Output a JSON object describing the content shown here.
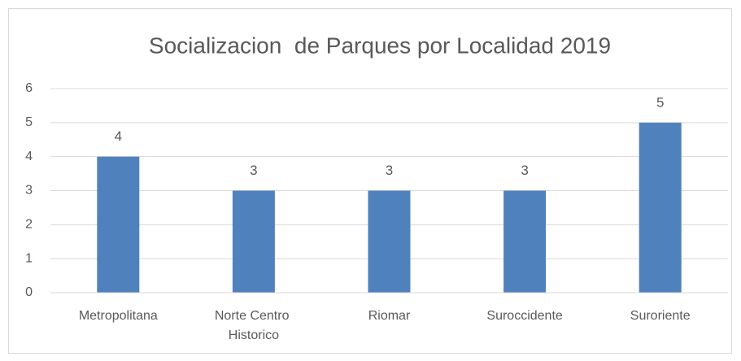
{
  "chart_data": {
    "type": "bar",
    "title": "Socializacion  de Parques por Localidad 2019",
    "categories": [
      "Metropolitana",
      "Norte Centro Historico",
      "Riomar",
      "Suroccidente",
      "Suroriente"
    ],
    "values": [
      4,
      3,
      3,
      3,
      5
    ],
    "color": "#4f81bd",
    "ylim": [
      0,
      6
    ],
    "yticks": [
      0,
      1,
      2,
      3,
      4,
      5,
      6
    ],
    "grid": true,
    "data_labels": true
  }
}
